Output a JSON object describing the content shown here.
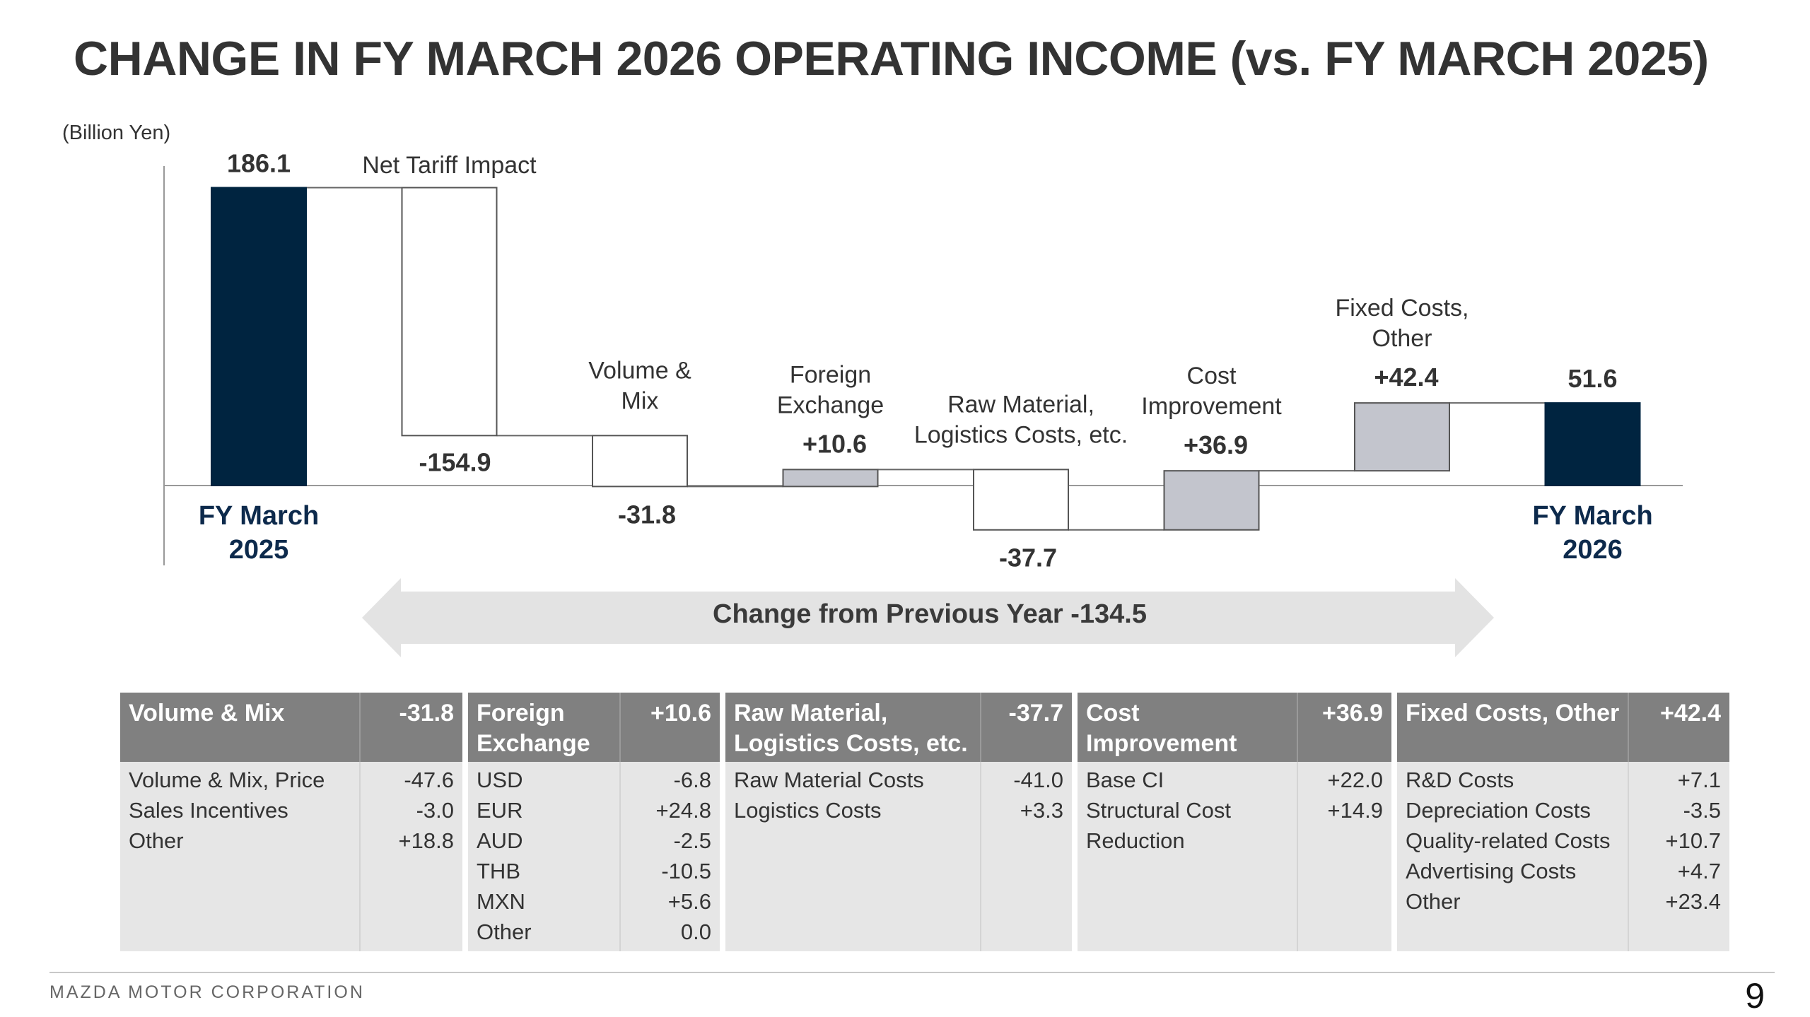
{
  "slide": {
    "title": "CHANGE IN FY MARCH 2026 OPERATING INCOME (vs. FY MARCH 2025)",
    "unit": "(Billion Yen)",
    "company": "MAZDA MOTOR CORPORATION",
    "page_number": "9"
  },
  "colors": {
    "total_bar": "#002440",
    "decrease_bar": "#ffffff",
    "increase_bar": "#c3c5cd",
    "bar_outline": "#555555",
    "header_bg": "#808080",
    "table_bg": "#e6e6e6",
    "arrow_bg": "#e3e3e3"
  },
  "chart_data": {
    "type": "waterfall",
    "unit": "Billion Yen",
    "ylim": [
      -50,
      190
    ],
    "grid": false,
    "steps": [
      {
        "kind": "total",
        "label_lines": [
          "FY March",
          "2025"
        ],
        "value": 186.1,
        "value_label": "186.1"
      },
      {
        "kind": "delta",
        "label_lines": [
          "Net Tariff Impact"
        ],
        "value": -154.9,
        "value_label": "-154.9"
      },
      {
        "kind": "delta",
        "label_lines": [
          "Volume &",
          "Mix"
        ],
        "value": -31.8,
        "value_label": "-31.8"
      },
      {
        "kind": "delta",
        "label_lines": [
          "Foreign",
          "Exchange"
        ],
        "value": 10.6,
        "value_label": "+10.6"
      },
      {
        "kind": "delta",
        "label_lines": [
          "Raw Material,",
          "Logistics Costs, etc."
        ],
        "value": -37.7,
        "value_label": "-37.7"
      },
      {
        "kind": "delta",
        "label_lines": [
          "Cost",
          "Improvement"
        ],
        "value": 36.9,
        "value_label": "+36.9"
      },
      {
        "kind": "delta",
        "label_lines": [
          "Fixed Costs,",
          "Other"
        ],
        "value": 42.4,
        "value_label": "+42.4"
      },
      {
        "kind": "total",
        "label_lines": [
          "FY March",
          "2026"
        ],
        "value": 51.6,
        "value_label": "51.6"
      }
    ],
    "change_label": "Change from Previous Year  -134.5"
  },
  "tables": [
    {
      "header_lines": [
        "Volume & Mix"
      ],
      "total": "-31.8",
      "rows": [
        {
          "label": "Volume & Mix, Price",
          "value": "-47.6"
        },
        {
          "label": "Sales Incentives",
          "value": "-3.0"
        },
        {
          "label": "Other",
          "value": "+18.8"
        }
      ]
    },
    {
      "header_lines": [
        "Foreign",
        "Exchange"
      ],
      "total": "+10.6",
      "rows": [
        {
          "label": "USD",
          "value": "-6.8"
        },
        {
          "label": "EUR",
          "value": "+24.8"
        },
        {
          "label": "AUD",
          "value": "-2.5"
        },
        {
          "label": "THB",
          "value": "-10.5"
        },
        {
          "label": "MXN",
          "value": "+5.6"
        },
        {
          "label": "Other",
          "value": "0.0"
        }
      ]
    },
    {
      "header_lines": [
        "Raw Material,",
        "Logistics Costs, etc."
      ],
      "total": "-37.7",
      "rows": [
        {
          "label": "Raw Material Costs",
          "value": "-41.0"
        },
        {
          "label": "Logistics Costs",
          "value": "+3.3"
        }
      ]
    },
    {
      "header_lines": [
        "Cost",
        "Improvement"
      ],
      "total": "+36.9",
      "rows": [
        {
          "label": "Base CI",
          "value": "+22.0"
        },
        {
          "label": "Structural Cost",
          "value": "+14.9"
        },
        {
          "label": "Reduction",
          "value": ""
        }
      ]
    },
    {
      "header_lines": [
        "Fixed Costs, Other"
      ],
      "total": "+42.4",
      "rows": [
        {
          "label": "R&D Costs",
          "value": "+7.1"
        },
        {
          "label": "Depreciation Costs",
          "value": "-3.5"
        },
        {
          "label": "Quality-related Costs",
          "value": "+10.7"
        },
        {
          "label": "Advertising Costs",
          "value": "+4.7"
        },
        {
          "label": "Other",
          "value": "+23.4"
        }
      ]
    }
  ]
}
